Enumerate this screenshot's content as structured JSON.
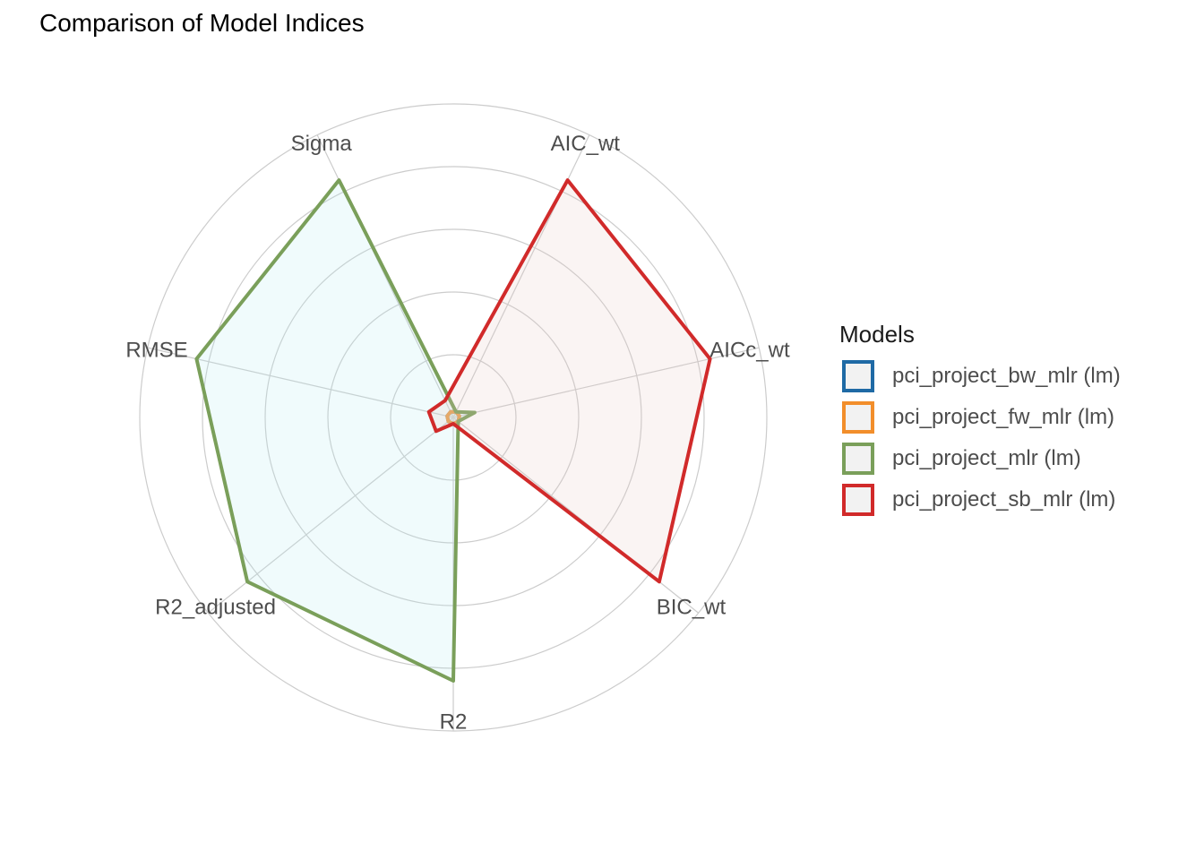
{
  "chart_data": {
    "type": "radar",
    "title": "Comparison of Model Indices",
    "axes": [
      "AIC_wt",
      "AICc_wt",
      "BIC_wt",
      "R2",
      "R2_adjusted",
      "RMSE",
      "Sigma"
    ],
    "rmax": 1,
    "grid_levels": [
      0.2,
      0.4,
      0.6,
      0.8,
      1.0
    ],
    "legend_title": "Models",
    "legend_position": "right",
    "series": [
      {
        "name": "pci_project_bw_mlr (lm)",
        "color": "#1f6aa5",
        "fill": "#b0e4f0",
        "values": [
          0.02,
          0.02,
          0.02,
          0.02,
          0.02,
          0.02,
          0.02
        ]
      },
      {
        "name": "pci_project_fw_mlr (lm)",
        "color": "#f28e2b",
        "fill": "#f5d2b0",
        "values": [
          0.02,
          0.02,
          0.02,
          0.02,
          0.02,
          0.02,
          0.02
        ]
      },
      {
        "name": "pci_project_mlr (lm)",
        "color": "#7a9f5a",
        "fill": "#b6ecf2",
        "values": [
          0.02,
          0.07,
          0.02,
          0.84,
          0.84,
          0.84,
          0.84
        ]
      },
      {
        "name": "pci_project_sb_mlr (lm)",
        "color": "#d12a2a",
        "fill": "#e6c7c2",
        "values": [
          0.84,
          0.84,
          0.84,
          0.02,
          0.07,
          0.08,
          0.06
        ]
      }
    ]
  }
}
